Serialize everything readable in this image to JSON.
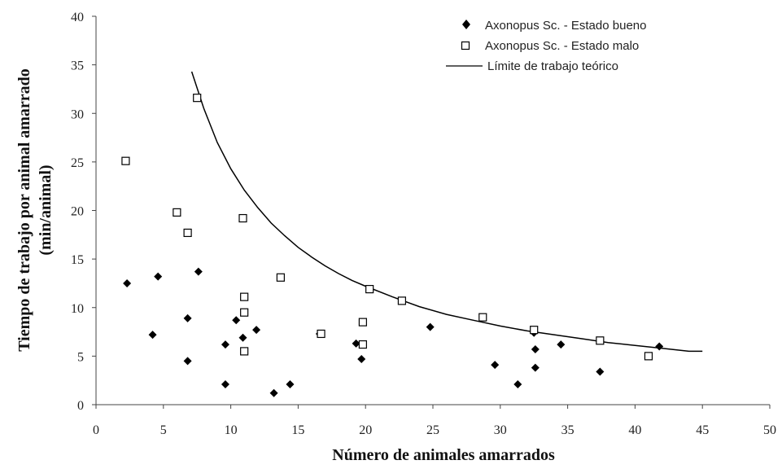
{
  "chart_data": {
    "type": "scatter",
    "xlabel": "Número de animales amarrados",
    "ylabel_line1": "Tiempo de trabajo por animal amarrado",
    "ylabel_line2": "(min/animal)",
    "xlim": [
      0,
      50
    ],
    "ylim": [
      0,
      40
    ],
    "xticks": [
      0,
      5,
      10,
      15,
      20,
      25,
      30,
      35,
      40,
      45,
      50
    ],
    "yticks": [
      0,
      5,
      10,
      15,
      20,
      25,
      30,
      35,
      40
    ],
    "grid": false,
    "legend_position": "top-right",
    "series": [
      {
        "name": "Axonopus Sc. - Estado bueno",
        "marker": "diamond",
        "color": "#000000",
        "points": [
          [
            2.3,
            12.5
          ],
          [
            4.2,
            7.2
          ],
          [
            4.6,
            13.2
          ],
          [
            6.8,
            8.9
          ],
          [
            6.8,
            4.5
          ],
          [
            7.6,
            13.7
          ],
          [
            9.6,
            6.2
          ],
          [
            9.6,
            2.1
          ],
          [
            10.4,
            8.7
          ],
          [
            10.9,
            6.9
          ],
          [
            11.9,
            7.7
          ],
          [
            13.2,
            1.2
          ],
          [
            14.4,
            2.1
          ],
          [
            16.6,
            7.3
          ],
          [
            19.3,
            6.3
          ],
          [
            19.7,
            4.7
          ],
          [
            24.8,
            8.0
          ],
          [
            29.6,
            4.1
          ],
          [
            31.3,
            2.1
          ],
          [
            32.5,
            7.4
          ],
          [
            32.6,
            5.7
          ],
          [
            32.6,
            3.8
          ],
          [
            34.5,
            6.2
          ],
          [
            37.4,
            3.4
          ],
          [
            41.8,
            6.0
          ]
        ]
      },
      {
        "name": "Axonopus Sc. - Estado malo",
        "marker": "square-open",
        "color": "#000000",
        "points": [
          [
            2.2,
            25.1
          ],
          [
            6.0,
            19.8
          ],
          [
            6.8,
            17.7
          ],
          [
            7.5,
            31.6
          ],
          [
            10.9,
            19.2
          ],
          [
            11.0,
            11.1
          ],
          [
            11.0,
            9.5
          ],
          [
            11.0,
            5.5
          ],
          [
            13.7,
            13.1
          ],
          [
            16.7,
            7.3
          ],
          [
            19.8,
            8.5
          ],
          [
            19.8,
            6.2
          ],
          [
            20.3,
            11.9
          ],
          [
            22.7,
            10.7
          ],
          [
            28.7,
            9.0
          ],
          [
            32.5,
            7.7
          ],
          [
            37.4,
            6.6
          ],
          [
            41.0,
            5.0
          ]
        ]
      },
      {
        "name": "Límite de trabajo teórico",
        "marker": "line",
        "color": "#000000",
        "x": [
          7.1,
          8,
          9,
          10,
          11,
          12,
          13,
          14,
          15,
          16,
          17,
          18,
          19,
          20,
          22,
          24,
          26,
          28,
          30,
          32,
          34,
          36,
          38,
          40,
          42,
          44,
          45
        ],
        "y": [
          34.3,
          30.5,
          27.0,
          24.3,
          22.1,
          20.3,
          18.7,
          17.4,
          16.2,
          15.2,
          14.3,
          13.5,
          12.8,
          12.2,
          11.1,
          10.1,
          9.3,
          8.7,
          8.1,
          7.6,
          7.2,
          6.8,
          6.4,
          6.1,
          5.8,
          5.5,
          5.5
        ]
      }
    ]
  }
}
